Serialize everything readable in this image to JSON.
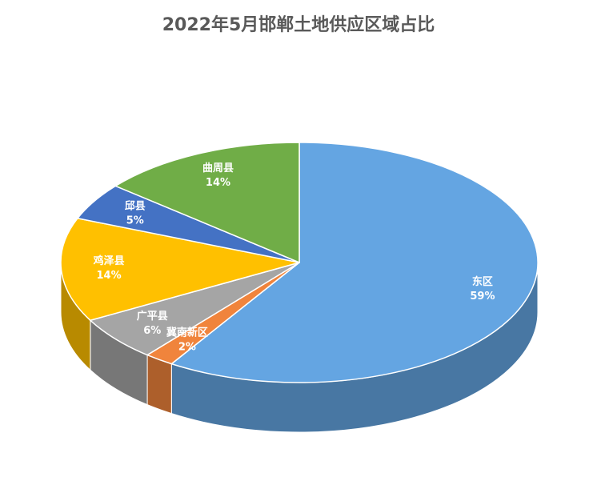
{
  "chart_data": {
    "type": "pie3d",
    "title": "2022年5月邯郸土地供应区域占比",
    "categories": [
      "东区",
      "冀南新区",
      "广平县",
      "鸡泽县",
      "邱县",
      "曲周县"
    ],
    "values": [
      59,
      2,
      6,
      14,
      5,
      14
    ],
    "value_labels": [
      "59%",
      "2%",
      "6%",
      "14%",
      "5%",
      "14%"
    ],
    "colors": [
      "#64a5e2",
      "#f0843c",
      "#a5a5a5",
      "#ffc000",
      "#4472c4",
      "#70ad47"
    ]
  }
}
